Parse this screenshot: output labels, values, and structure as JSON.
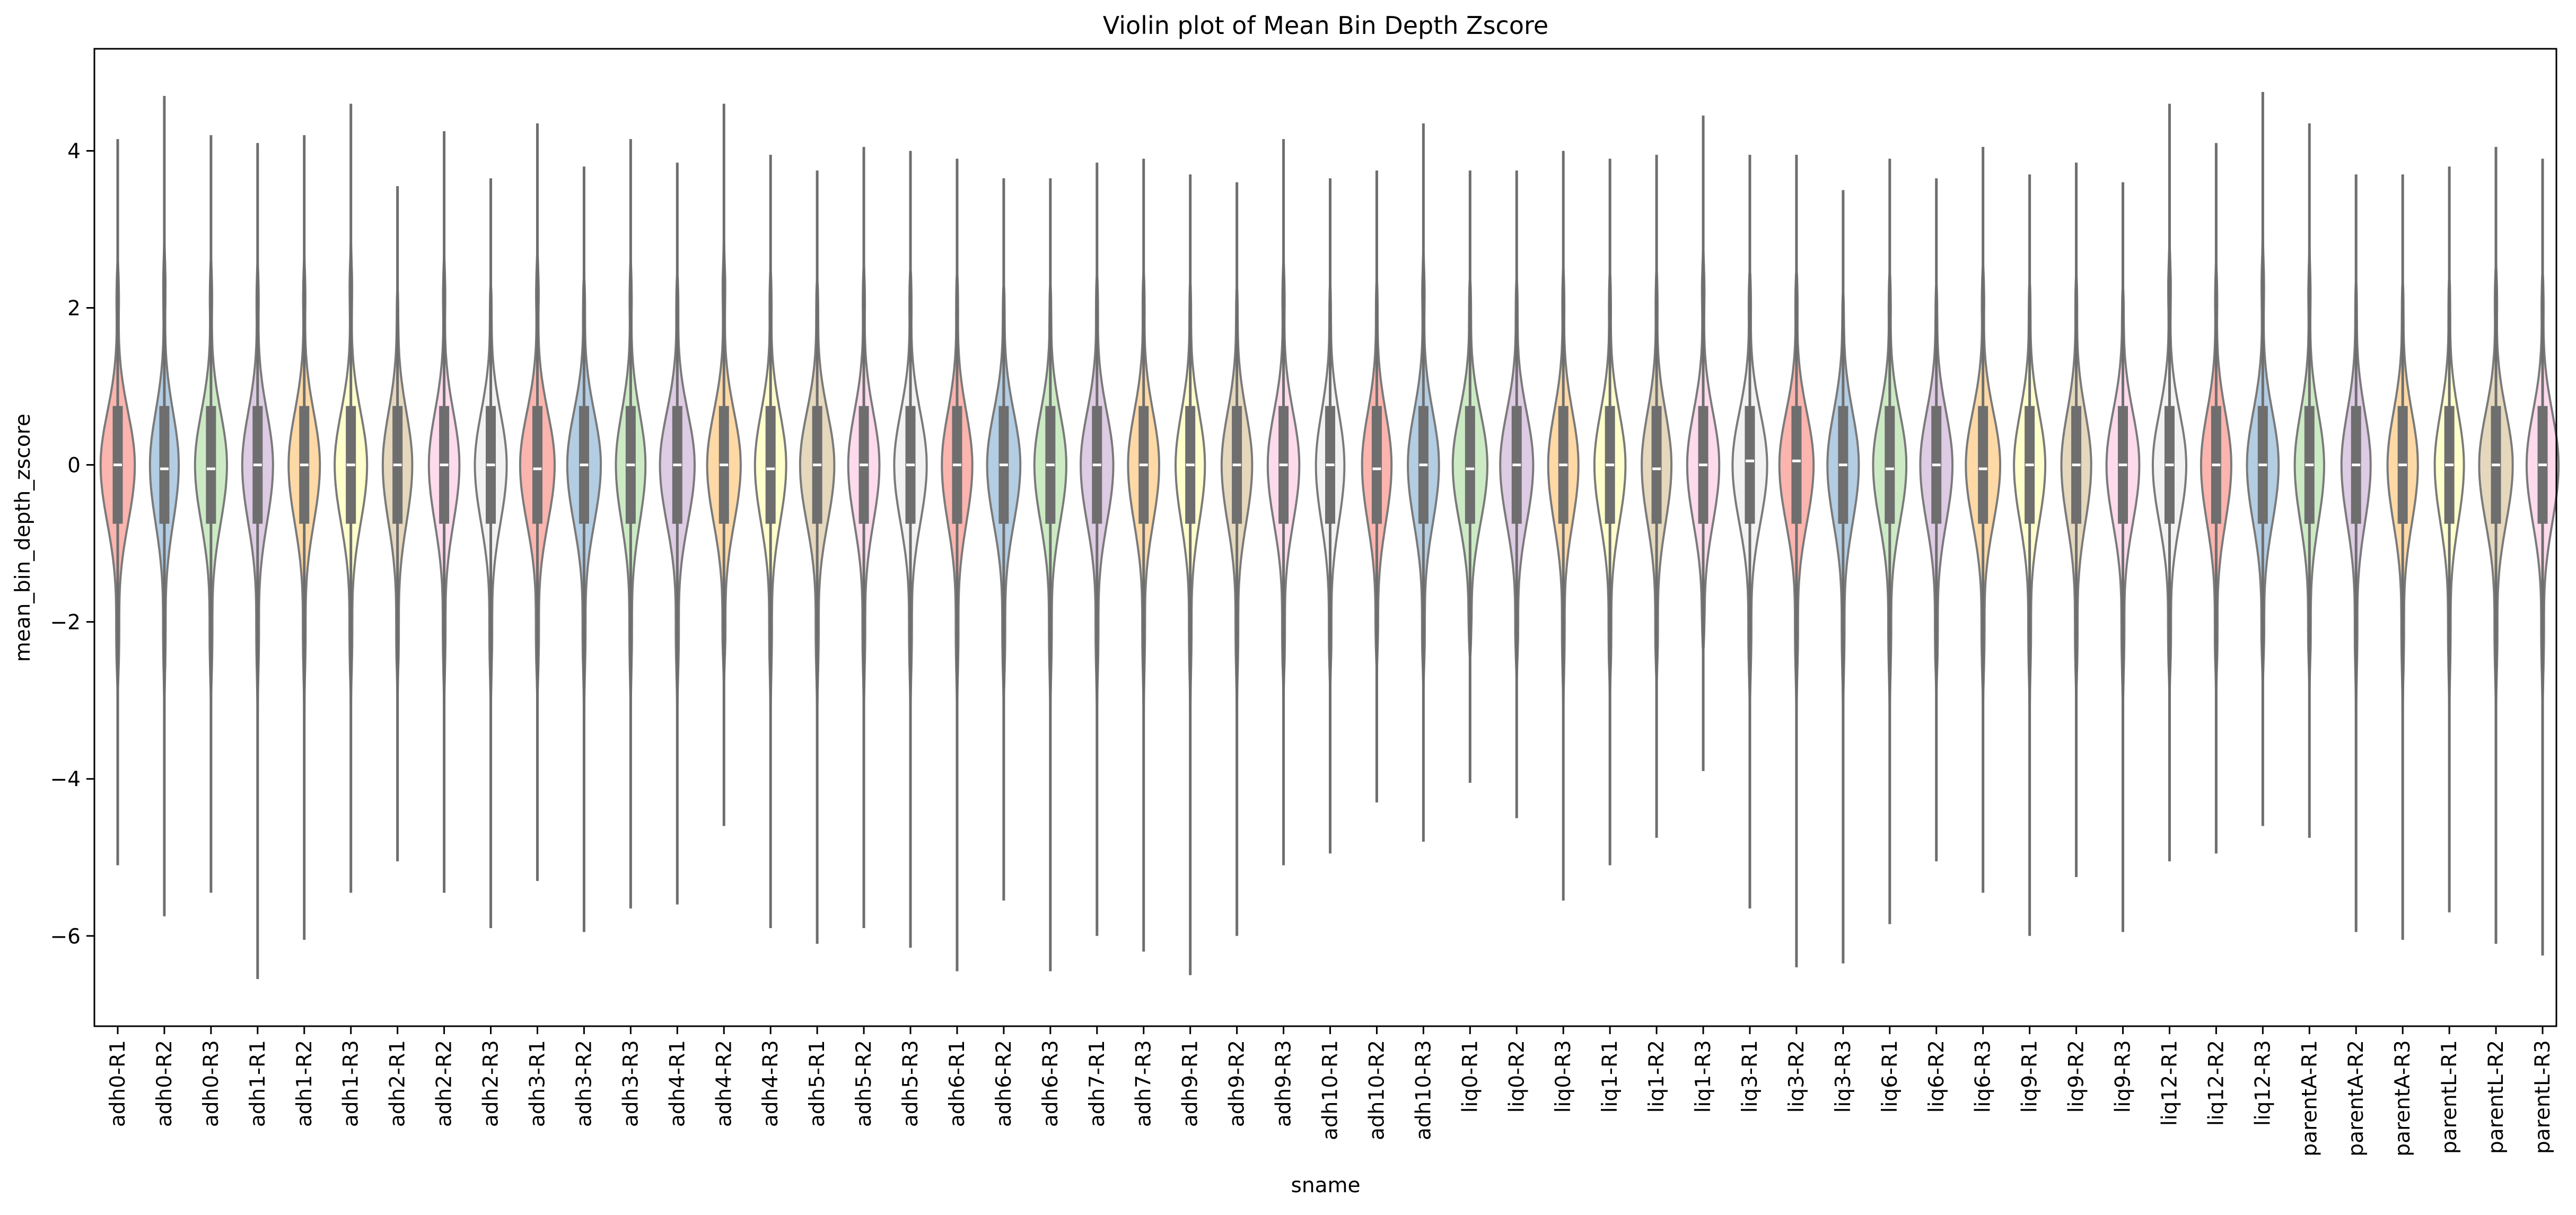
{
  "chart_data": {
    "type": "violin",
    "title": "Violin plot of Mean Bin Depth Zscore",
    "xlabel": "sname",
    "ylabel": "mean_bin_depth_zscore",
    "ylim": [
      -7.15,
      5.3
    ],
    "yticks": [
      4,
      2,
      0,
      -2,
      -4,
      -6
    ],
    "ytick_labels": [
      "4",
      "2",
      "0",
      "−2",
      "−4",
      "−6"
    ],
    "grid": false,
    "palette": [
      "#fbb4ae",
      "#b3cde3",
      "#ccebc5",
      "#decbe4",
      "#fed9a6",
      "#ffffcc",
      "#e5d8bd",
      "#fddaec",
      "#f2f2f2"
    ],
    "edge_color": "#7a7a7a",
    "box_color": "#6e6e6e",
    "median_color": "#ffffff",
    "categories": [
      "adh0-R1",
      "adh0-R2",
      "adh0-R3",
      "adh1-R1",
      "adh1-R2",
      "adh1-R3",
      "adh2-R1",
      "adh2-R2",
      "adh2-R3",
      "adh3-R1",
      "adh3-R2",
      "adh3-R3",
      "adh4-R1",
      "adh4-R2",
      "adh4-R3",
      "adh5-R1",
      "adh5-R2",
      "adh5-R3",
      "adh6-R1",
      "adh6-R2",
      "adh6-R3",
      "adh7-R1",
      "adh7-R3",
      "adh9-R1",
      "adh9-R2",
      "adh9-R3",
      "adh10-R1",
      "adh10-R2",
      "adh10-R3",
      "liq0-R1",
      "liq0-R2",
      "liq0-R3",
      "liq1-R1",
      "liq1-R2",
      "liq1-R3",
      "liq3-R1",
      "liq3-R2",
      "liq3-R3",
      "liq6-R1",
      "liq6-R2",
      "liq6-R3",
      "liq9-R1",
      "liq9-R2",
      "liq9-R3",
      "liq12-R1",
      "liq12-R2",
      "liq12-R3",
      "parentA-R1",
      "parentA-R2",
      "parentA-R3",
      "parentL-R1",
      "parentL-R2",
      "parentL-R3"
    ],
    "max": [
      4.15,
      4.7,
      4.2,
      4.1,
      4.2,
      4.6,
      3.55,
      4.25,
      3.65,
      4.35,
      3.8,
      4.15,
      3.85,
      4.6,
      3.95,
      3.75,
      4.05,
      4.0,
      3.9,
      3.65,
      3.65,
      3.85,
      3.9,
      3.7,
      3.6,
      4.15,
      3.65,
      3.75,
      4.35,
      3.75,
      3.75,
      4.0,
      3.9,
      3.95,
      4.45,
      3.95,
      3.95,
      3.5,
      3.9,
      3.65,
      4.05,
      3.7,
      3.85,
      3.6,
      4.6,
      4.1,
      4.75,
      4.35,
      3.7,
      3.7,
      3.8,
      4.05,
      3.9
    ],
    "min": [
      -5.1,
      -5.75,
      -5.45,
      -6.55,
      -6.05,
      -5.45,
      -5.05,
      -5.45,
      -5.9,
      -5.3,
      -5.95,
      -5.65,
      -5.6,
      -4.6,
      -5.9,
      -6.1,
      -5.9,
      -6.15,
      -6.45,
      -5.55,
      -6.45,
      -6.0,
      -6.2,
      -6.5,
      -6.0,
      -5.1,
      -4.95,
      -4.3,
      -4.8,
      -4.05,
      -4.5,
      -5.55,
      -5.1,
      -4.75,
      -3.9,
      -5.65,
      -6.4,
      -6.35,
      -5.85,
      -5.05,
      -5.45,
      -6.0,
      -5.25,
      -5.95,
      -5.05,
      -4.95,
      -4.6,
      -4.75,
      -5.95,
      -6.05,
      -5.7,
      -6.1,
      -6.25
    ],
    "median": [
      0.0,
      -0.05,
      -0.05,
      0.0,
      0.0,
      0.0,
      0.0,
      0.0,
      0.0,
      -0.05,
      0.0,
      0.0,
      0.0,
      0.0,
      -0.05,
      0.0,
      0.0,
      0.0,
      0.0,
      0.0,
      0.0,
      0.0,
      0.0,
      0.0,
      0.0,
      0.0,
      0.0,
      -0.05,
      0.0,
      -0.05,
      0.0,
      0.0,
      0.0,
      -0.05,
      0.0,
      0.05,
      0.05,
      0.0,
      -0.05,
      0.0,
      -0.05,
      0.0,
      0.0,
      0.0,
      0.0,
      0.0,
      0.0,
      0.0,
      0.0,
      0.0,
      0.0,
      0.0,
      0.0
    ],
    "q1": [
      -0.75,
      -0.75,
      -0.75,
      -0.75,
      -0.75,
      -0.75,
      -0.75,
      -0.75,
      -0.75,
      -0.75,
      -0.75,
      -0.75,
      -0.75,
      -0.75,
      -0.75,
      -0.75,
      -0.75,
      -0.75,
      -0.75,
      -0.75,
      -0.75,
      -0.75,
      -0.75,
      -0.75,
      -0.75,
      -0.75,
      -0.75,
      -0.75,
      -0.75,
      -0.75,
      -0.75,
      -0.75,
      -0.75,
      -0.75,
      -0.75,
      -0.75,
      -0.75,
      -0.75,
      -0.75,
      -0.75,
      -0.75,
      -0.75,
      -0.75,
      -0.75,
      -0.75,
      -0.75,
      -0.75,
      -0.75,
      -0.75,
      -0.75,
      -0.75,
      -0.75,
      -0.75
    ],
    "q3": [
      0.75,
      0.75,
      0.75,
      0.75,
      0.75,
      0.75,
      0.75,
      0.75,
      0.75,
      0.75,
      0.75,
      0.75,
      0.75,
      0.75,
      0.75,
      0.75,
      0.75,
      0.75,
      0.75,
      0.75,
      0.75,
      0.75,
      0.75,
      0.75,
      0.75,
      0.75,
      0.75,
      0.75,
      0.75,
      0.75,
      0.75,
      0.75,
      0.75,
      0.75,
      0.75,
      0.75,
      0.75,
      0.75,
      0.75,
      0.75,
      0.75,
      0.75,
      0.75,
      0.75,
      0.75,
      0.75,
      0.75,
      0.75,
      0.75,
      0.75,
      0.75,
      0.75,
      0.75
    ]
  }
}
